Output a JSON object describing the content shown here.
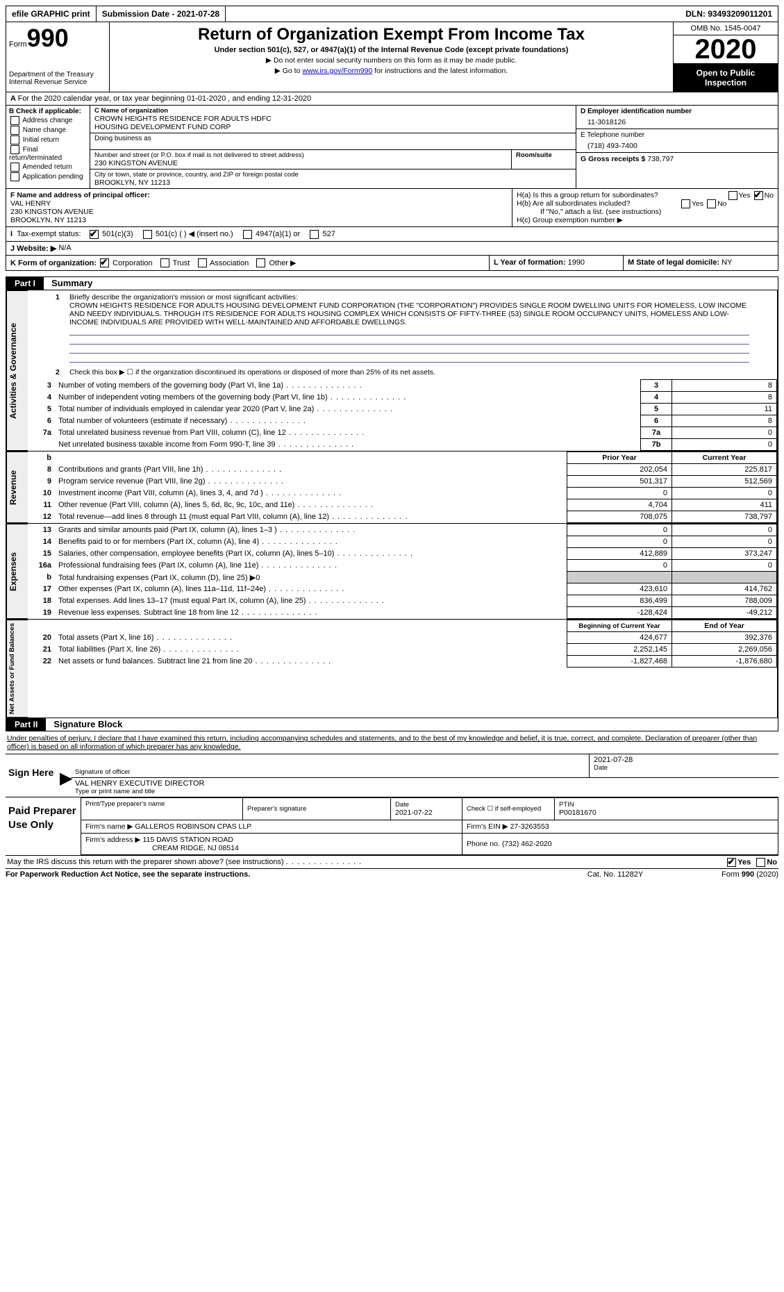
{
  "top": {
    "efile": "efile GRAPHIC print",
    "submission": "Submission Date - 2021-07-28",
    "dln_label": "DLN:",
    "dln": "93493209011201"
  },
  "header": {
    "form_word": "Form",
    "form_num": "990",
    "dept1": "Department of the Treasury",
    "dept2": "Internal Revenue Service",
    "title": "Return of Organization Exempt From Income Tax",
    "subtitle": "Under section 501(c), 527, or 4947(a)(1) of the Internal Revenue Code (except private foundations)",
    "note1": "▶ Do not enter social security numbers on this form as it may be made public.",
    "note2_pre": "▶ Go to ",
    "note2_link": "www.irs.gov/Form990",
    "note2_post": " for instructions and the latest information.",
    "omb": "OMB No. 1545-0047",
    "year": "2020",
    "open": "Open to Public Inspection"
  },
  "A": {
    "text": "For the 2020 calendar year, or tax year beginning 01-01-2020   , and ending 12-31-2020"
  },
  "B": {
    "label": "B Check if applicable:",
    "opts": [
      "Address change",
      "Name change",
      "Initial return",
      "Final return/terminated",
      "Amended return",
      "Application pending"
    ]
  },
  "C": {
    "name_label": "C Name of organization",
    "name1": "CROWN HEIGHTS RESIDENCE FOR ADULTS HDFC",
    "name2": "HOUSING DEVELOPMENT FUND CORP",
    "dba_label": "Doing business as",
    "addr_label": "Number and street (or P.O. box if mail is not delivered to street address)",
    "addr": "230 KINGSTON AVENUE",
    "suite_label": "Room/suite",
    "city_label": "City or town, state or province, country, and ZIP or foreign postal code",
    "city": "BROOKLYN, NY  11213"
  },
  "D": {
    "label": "D Employer identification number",
    "value": "11-3018126"
  },
  "E": {
    "label": "E Telephone number",
    "value": "(718) 493-7400"
  },
  "G": {
    "label": "G Gross receipts $",
    "value": "738,797"
  },
  "F": {
    "label": "F Name and address of principal officer:",
    "name": "VAL HENRY",
    "addr1": "230 KINGSTON AVENUE",
    "addr2": "BROOKLYN, NY  11213"
  },
  "H": {
    "a": "H(a)  Is this a group return for subordinates?",
    "b": "H(b)  Are all subordinates included?",
    "b_note": "If \"No,\" attach a list. (see instructions)",
    "c": "H(c)  Group exemption number ▶"
  },
  "I": {
    "label": "Tax-exempt status:",
    "opts": [
      "501(c)(3)",
      "501(c) (  ) ◀ (insert no.)",
      "4947(a)(1) or",
      "527"
    ]
  },
  "J": {
    "label": "J Website: ▶",
    "value": "N/A"
  },
  "K": {
    "label": "K Form of organization:",
    "opts": [
      "Corporation",
      "Trust",
      "Association",
      "Other ▶"
    ]
  },
  "L": {
    "label": "L Year of formation:",
    "value": "1990"
  },
  "M": {
    "label": "M State of legal domicile:",
    "value": "NY"
  },
  "part1": {
    "header": "Part I",
    "title": "Summary",
    "q1_label": "Briefly describe the organization's mission or most significant activities:",
    "q1_text": "CROWN HEIGHTS RESIDENCE FOR ADULTS HOUSING DEVELOPMENT FUND CORPORATION (THE \"CORPORATION\") PROVIDES SINGLE ROOM DWELLING UNITS FOR HOMELESS, LOW INCOME AND NEEDY INDIVIDUALS. THROUGH ITS RESIDENCE FOR ADULTS HOUSING COMPLEX WHICH CONSISTS OF FIFTY-THREE (53) SINGLE ROOM OCCUPANCY UNITS, HOMELESS AND LOW-INCOME INDIVIDUALS ARE PROVIDED WITH WELL-MAINTAINED AND AFFORDABLE DWELLINGS.",
    "q2": "Check this box ▶ ☐  if the organization discontinued its operations or disposed of more than 25% of its net assets.",
    "vtabs": {
      "ag": "Activities & Governance",
      "rev": "Revenue",
      "exp": "Expenses",
      "na": "Net Assets or Fund Balances"
    },
    "lines_single": [
      {
        "n": "3",
        "d": "Number of voting members of the governing body (Part VI, line 1a)",
        "box": "3",
        "v": "8"
      },
      {
        "n": "4",
        "d": "Number of independent voting members of the governing body (Part VI, line 1b)",
        "box": "4",
        "v": "8"
      },
      {
        "n": "5",
        "d": "Total number of individuals employed in calendar year 2020 (Part V, line 2a)",
        "box": "5",
        "v": "11"
      },
      {
        "n": "6",
        "d": "Total number of volunteers (estimate if necessary)",
        "box": "6",
        "v": "8"
      },
      {
        "n": "7a",
        "d": "Total unrelated business revenue from Part VIII, column (C), line 12",
        "box": "7a",
        "v": "0"
      },
      {
        "n": "",
        "d": "Net unrelated business taxable income from Form 990-T, line 39",
        "box": "7b",
        "v": "0"
      }
    ],
    "col_hdrs": {
      "prior": "Prior Year",
      "current": "Current Year",
      "boy": "Beginning of Current Year",
      "eoy": "End of Year"
    },
    "rev": [
      {
        "n": "8",
        "d": "Contributions and grants (Part VIII, line 1h)",
        "p": "202,054",
        "c": "225,817"
      },
      {
        "n": "9",
        "d": "Program service revenue (Part VIII, line 2g)",
        "p": "501,317",
        "c": "512,569"
      },
      {
        "n": "10",
        "d": "Investment income (Part VIII, column (A), lines 3, 4, and 7d )",
        "p": "0",
        "c": "0"
      },
      {
        "n": "11",
        "d": "Other revenue (Part VIII, column (A), lines 5, 6d, 8c, 9c, 10c, and 11e)",
        "p": "4,704",
        "c": "411"
      },
      {
        "n": "12",
        "d": "Total revenue—add lines 8 through 11 (must equal Part VIII, column (A), line 12)",
        "p": "708,075",
        "c": "738,797"
      }
    ],
    "exp": [
      {
        "n": "13",
        "d": "Grants and similar amounts paid (Part IX, column (A), lines 1–3 )",
        "p": "0",
        "c": "0"
      },
      {
        "n": "14",
        "d": "Benefits paid to or for members (Part IX, column (A), line 4)",
        "p": "0",
        "c": "0"
      },
      {
        "n": "15",
        "d": "Salaries, other compensation, employee benefits (Part IX, column (A), lines 5–10)",
        "p": "412,889",
        "c": "373,247"
      },
      {
        "n": "16a",
        "d": "Professional fundraising fees (Part IX, column (A), line 11e)",
        "p": "0",
        "c": "0"
      },
      {
        "n": "b",
        "d": "Total fundraising expenses (Part IX, column (D), line 25) ▶0",
        "p": "",
        "c": "",
        "shade": true
      },
      {
        "n": "17",
        "d": "Other expenses (Part IX, column (A), lines 11a–11d, 11f–24e)",
        "p": "423,610",
        "c": "414,762"
      },
      {
        "n": "18",
        "d": "Total expenses. Add lines 13–17 (must equal Part IX, column (A), line 25)",
        "p": "836,499",
        "c": "788,009"
      },
      {
        "n": "19",
        "d": "Revenue less expenses. Subtract line 18 from line 12",
        "p": "-128,424",
        "c": "-49,212"
      }
    ],
    "na": [
      {
        "n": "20",
        "d": "Total assets (Part X, line 16)",
        "p": "424,677",
        "c": "392,376"
      },
      {
        "n": "21",
        "d": "Total liabilities (Part X, line 26)",
        "p": "2,252,145",
        "c": "2,269,056"
      },
      {
        "n": "22",
        "d": "Net assets or fund balances. Subtract line 21 from line 20",
        "p": "-1,827,468",
        "c": "-1,876,680"
      }
    ]
  },
  "part2": {
    "header": "Part II",
    "title": "Signature Block",
    "decl": "Under penalties of perjury, I declare that I have examined this return, including accompanying schedules and statements, and to the best of my knowledge and belief, it is true, correct, and complete. Declaration of preparer (other than officer) is based on all information of which preparer has any knowledge.",
    "sign_here": "Sign Here",
    "sig_officer": "Signature of officer",
    "sig_date": "Date",
    "date_val": "2021-07-28",
    "type_name": "Type or print name and title",
    "officer_name": "VAL HENRY EXECUTIVE DIRECTOR",
    "paid": "Paid Preparer Use Only",
    "prep_name_label": "Print/Type preparer's name",
    "prep_sig_label": "Preparer's signature",
    "prep_date_label": "Date",
    "prep_date": "2021-07-22",
    "check_self": "Check ☐ if self-employed",
    "ptin_label": "PTIN",
    "ptin": "P00181670",
    "firm_name_label": "Firm's name    ▶",
    "firm_name": "GALLEROS ROBINSON CPAS LLP",
    "firm_ein_label": "Firm's EIN ▶",
    "firm_ein": "27-3263553",
    "firm_addr_label": "Firm's address ▶",
    "firm_addr1": "115 DAVIS STATION ROAD",
    "firm_addr2": "CREAM RIDGE, NJ  08514",
    "phone_label": "Phone no.",
    "phone": "(732) 462-2020",
    "discuss": "May the IRS discuss this return with the preparer shown above? (see instructions)"
  },
  "footer": {
    "left": "For Paperwork Reduction Act Notice, see the separate instructions.",
    "mid": "Cat. No. 11282Y",
    "right": "Form 990 (2020)"
  },
  "labels": {
    "yes": "Yes",
    "no": "No"
  }
}
